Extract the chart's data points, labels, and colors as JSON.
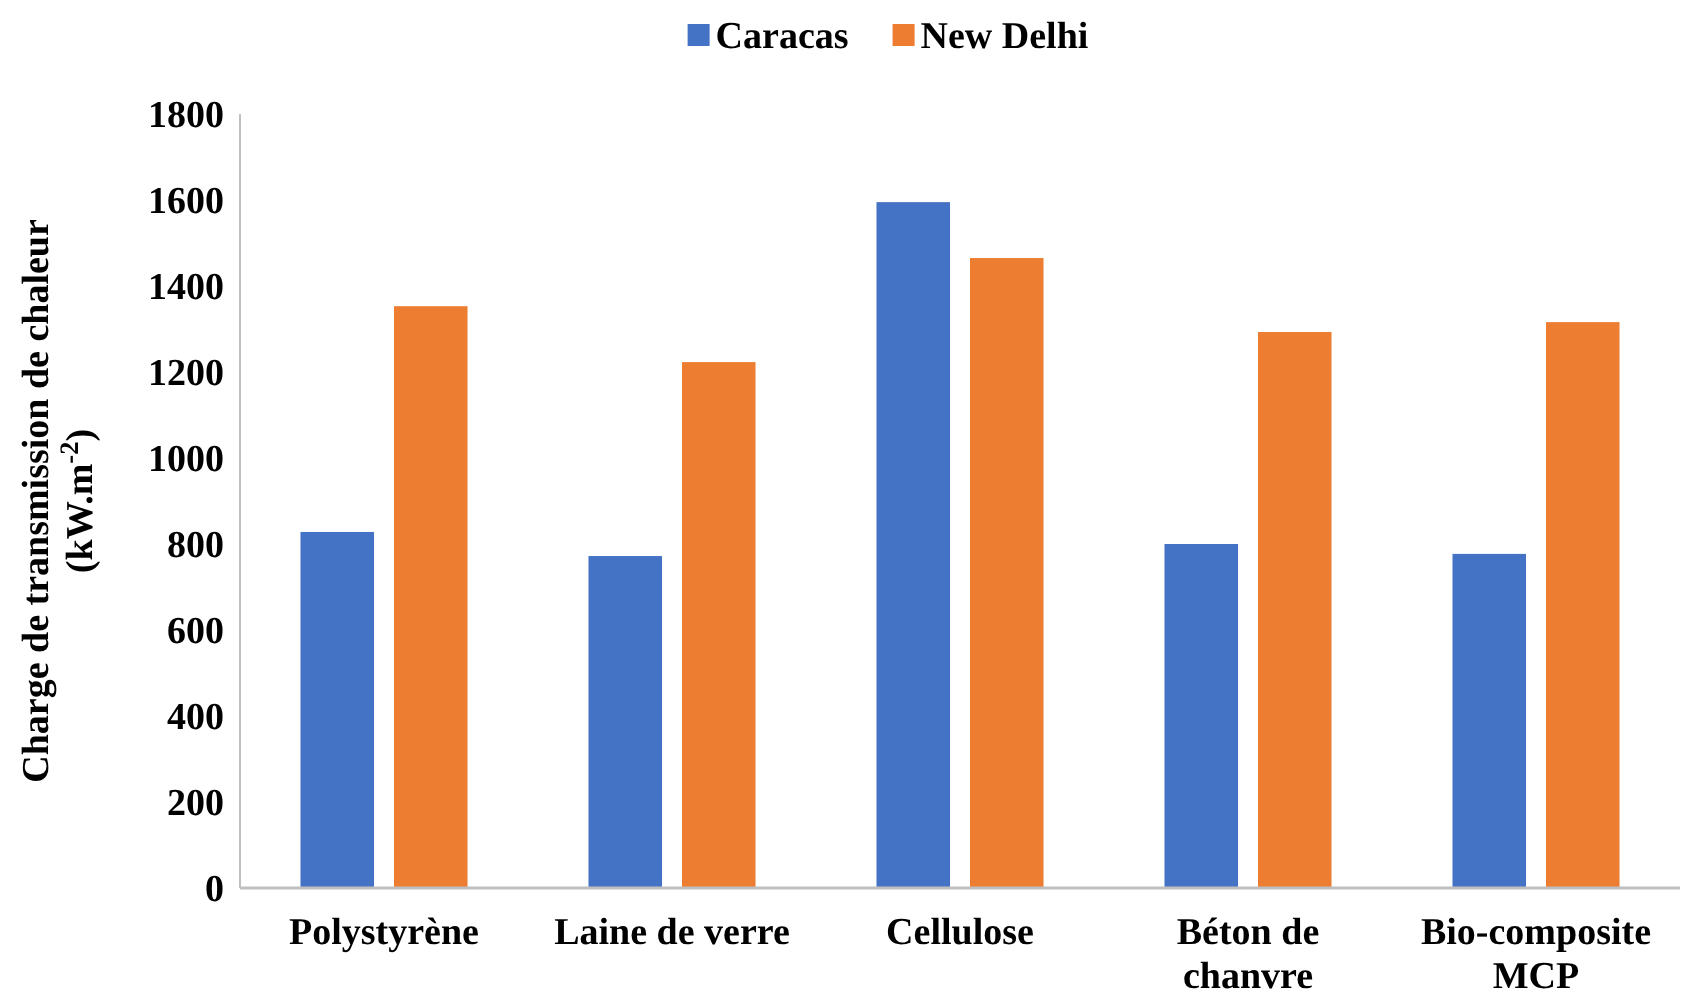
{
  "chart_data": {
    "type": "bar",
    "categories": [
      "Polystyrène",
      "Laine de verre",
      "Cellulose",
      "Béton de chanvre",
      "Bio-composite MCP"
    ],
    "series": [
      {
        "name": "Caracas",
        "color": "#4472c4",
        "values": [
          828,
          772,
          1595,
          800,
          777
        ]
      },
      {
        "name": "New Delhi",
        "color": "#ed7d31",
        "values": [
          1353,
          1223,
          1465,
          1293,
          1316
        ]
      }
    ],
    "ylabel": "Charge de transmission de chaleur (kW.m$^{-2}$)",
    "ylim": [
      0,
      1800
    ],
    "yticks": [
      0,
      200,
      400,
      600,
      800,
      1000,
      1200,
      1400,
      1600,
      1800
    ],
    "grid": false,
    "legend": "top"
  }
}
